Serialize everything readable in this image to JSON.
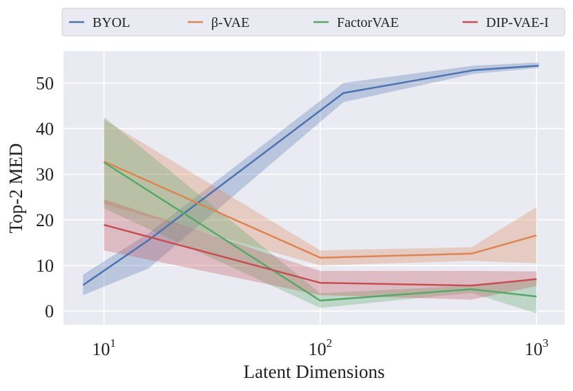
{
  "chart_data": {
    "type": "line",
    "title": "",
    "xlabel": "Latent Dimensions",
    "ylabel": "Top-2 MED",
    "xscale": "log",
    "xlim": [
      6.5,
      1350
    ],
    "ylim": [
      -3,
      57
    ],
    "grid": true,
    "legend_position": "top",
    "x_ticks": [
      {
        "value": 10,
        "base": "10",
        "exp": "1"
      },
      {
        "value": 100,
        "base": "10",
        "exp": "2"
      },
      {
        "value": 1000,
        "base": "10",
        "exp": "3"
      }
    ],
    "y_ticks": [
      0,
      10,
      20,
      30,
      40,
      50
    ],
    "series": [
      {
        "name": "BYOL",
        "color": "#4c72b0",
        "x": [
          8,
          16,
          128,
          512,
          1024
        ],
        "y": [
          5.7,
          15.5,
          47.8,
          52.8,
          53.8
        ],
        "lower": [
          3.5,
          9.3,
          45.8,
          52.0,
          53.3
        ],
        "upper": [
          8.0,
          17.0,
          50.0,
          53.8,
          54.5
        ]
      },
      {
        "name": "β-VAE",
        "color": "#dd8452",
        "x": [
          10,
          100,
          500,
          1000
        ],
        "y": [
          32.8,
          11.7,
          12.6,
          16.6
        ],
        "lower": [
          23.5,
          10.0,
          11.0,
          10.5
        ],
        "upper": [
          42.0,
          13.3,
          14.0,
          22.8
        ]
      },
      {
        "name": "FactorVAE",
        "color": "#55a868",
        "x": [
          10,
          100,
          500,
          1000
        ],
        "y": [
          32.6,
          2.3,
          4.8,
          3.2
        ],
        "lower": [
          22.5,
          0.7,
          4.0,
          -0.5
        ],
        "upper": [
          42.5,
          3.9,
          5.6,
          6.8
        ]
      },
      {
        "name": "DIP-VAE-I",
        "color": "#c44e52",
        "x": [
          10,
          100,
          500,
          1000
        ],
        "y": [
          18.9,
          6.2,
          5.6,
          7.0
        ],
        "lower": [
          13.3,
          3.5,
          2.5,
          5.5
        ],
        "upper": [
          24.5,
          8.8,
          8.8,
          8.7
        ]
      }
    ]
  }
}
